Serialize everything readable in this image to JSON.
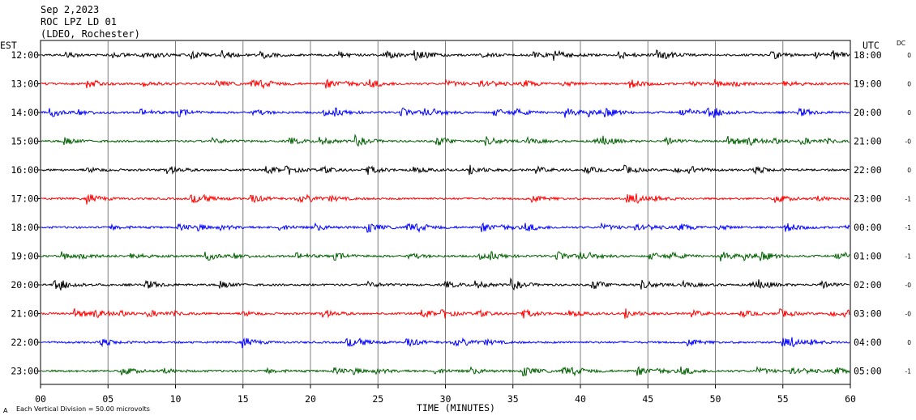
{
  "header": {
    "date": "Sep 2,2023",
    "station": "ROC LPZ LD 01",
    "network": "(LDEO, Rochester)"
  },
  "left_axis_label": "EST",
  "right_axis_label": "UTC",
  "dc_label": "DC",
  "xlabel": "TIME (MINUTES)",
  "scale_note": "Each Vertical Division =   50.00 microvolts",
  "corner_mark": "A",
  "colors": {
    "black": "#000000",
    "red": "#ff0000",
    "blue": "#0000ff",
    "green": "#006000",
    "grid": "#7f7f7f"
  },
  "chart_data": {
    "type": "line",
    "title": "ROC LPZ LD 01",
    "xlabel": "TIME (MINUTES)",
    "xlim": [
      0,
      60
    ],
    "x_ticks": [
      "00",
      "05",
      "10",
      "15",
      "20",
      "25",
      "30",
      "35",
      "40",
      "45",
      "50",
      "55",
      "60"
    ],
    "series": [
      {
        "est": "12:00",
        "utc": "18:00",
        "dc": "0",
        "color": "#000000"
      },
      {
        "est": "13:00",
        "utc": "19:00",
        "dc": "0",
        "color": "#ff0000"
      },
      {
        "est": "14:00",
        "utc": "20:00",
        "dc": "0",
        "color": "#0000ff"
      },
      {
        "est": "15:00",
        "utc": "21:00",
        "dc": "-0",
        "color": "#006000"
      },
      {
        "est": "16:00",
        "utc": "22:00",
        "dc": "0",
        "color": "#000000"
      },
      {
        "est": "17:00",
        "utc": "23:00",
        "dc": "-1",
        "color": "#ff0000"
      },
      {
        "est": "18:00",
        "utc": "00:00",
        "dc": "-1",
        "color": "#0000ff"
      },
      {
        "est": "19:00",
        "utc": "01:00",
        "dc": "-1",
        "color": "#006000"
      },
      {
        "est": "20:00",
        "utc": "02:00",
        "dc": "-0",
        "color": "#000000"
      },
      {
        "est": "21:00",
        "utc": "03:00",
        "dc": "-0",
        "color": "#ff0000"
      },
      {
        "est": "22:00",
        "utc": "04:00",
        "dc": "0",
        "color": "#0000ff"
      },
      {
        "est": "23:00",
        "utc": "05:00",
        "dc": "-1",
        "color": "#006000"
      }
    ]
  }
}
